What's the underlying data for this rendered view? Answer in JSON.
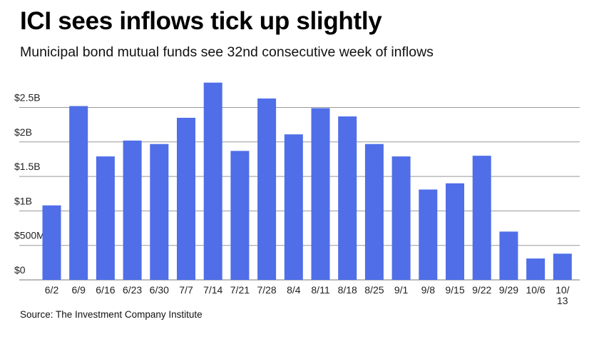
{
  "chart_data": {
    "type": "bar",
    "title": "ICI sees inflows tick up slightly",
    "subtitle": "Municipal bond mutual funds see 32nd consecutive week of inflows",
    "source": "Source: The Investment Company Institute",
    "xlabel": "",
    "ylabel": "",
    "ylim": [
      0,
      2.9
    ],
    "y_unit": "billions USD",
    "y_ticks": [
      {
        "value": 0,
        "label": "$0"
      },
      {
        "value": 0.5,
        "label": "$500M"
      },
      {
        "value": 1,
        "label": "$1B"
      },
      {
        "value": 1.5,
        "label": "$1.5B"
      },
      {
        "value": 2,
        "label": "$2B"
      },
      {
        "value": 2.5,
        "label": "$2.5B"
      }
    ],
    "grid": true,
    "categories": [
      "6/2",
      "6/9",
      "6/16",
      "6/23",
      "6/30",
      "7/7",
      "7/14",
      "7/21",
      "7/28",
      "8/4",
      "8/11",
      "8/18",
      "8/25",
      "9/1",
      "9/8",
      "9/15",
      "9/22",
      "9/29",
      "10/6",
      "10/13"
    ],
    "values": [
      1.08,
      2.52,
      1.79,
      2.02,
      1.97,
      2.35,
      2.86,
      1.87,
      2.63,
      2.11,
      2.49,
      2.37,
      1.97,
      1.79,
      1.31,
      1.4,
      1.8,
      0.7,
      0.31,
      0.38
    ],
    "bar_color": "#4f6ee8"
  }
}
